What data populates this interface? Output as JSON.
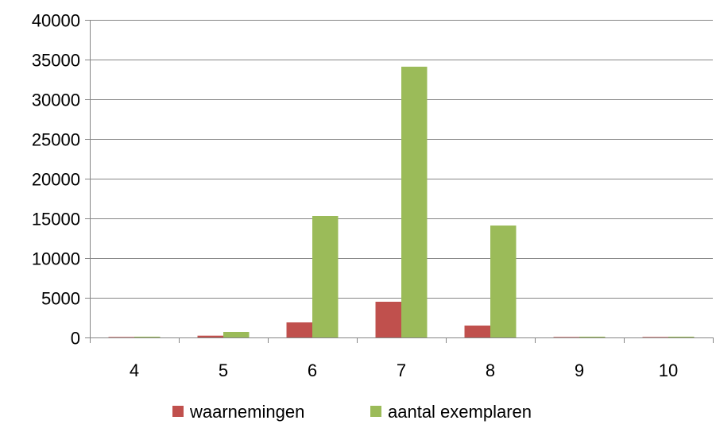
{
  "chart_data": {
    "type": "bar",
    "categories": [
      "4",
      "5",
      "6",
      "7",
      "8",
      "9",
      "10"
    ],
    "series": [
      {
        "name": "waarnemingen",
        "color": "#C0504D",
        "values": [
          60,
          230,
          1900,
          4500,
          1500,
          60,
          60
        ]
      },
      {
        "name": "aantal exemplaren",
        "color": "#9BBB59",
        "values": [
          100,
          700,
          15300,
          34100,
          14100,
          100,
          100
        ]
      }
    ],
    "y_ticks": [
      "0",
      "5000",
      "10000",
      "15000",
      "20000",
      "25000",
      "30000",
      "35000",
      "40000"
    ],
    "ylim": [
      0,
      40000
    ],
    "grid": true,
    "legend_position": "bottom"
  }
}
